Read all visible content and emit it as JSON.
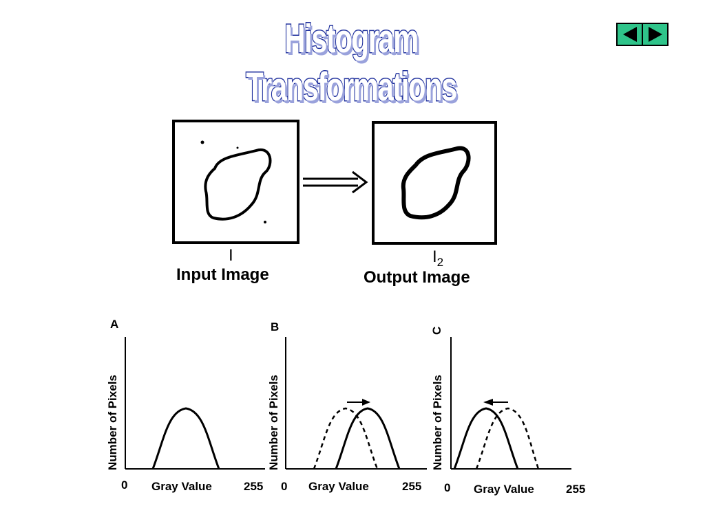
{
  "slide": {
    "title": "Histogram Transformations"
  },
  "nav": {
    "prev_icon": "triangle-left-icon",
    "next_icon": "triangle-right-icon",
    "color": "#2fc48a"
  },
  "images": {
    "input": {
      "symbol": "I",
      "caption": "Input Image"
    },
    "output": {
      "symbol": "I",
      "subscript": "2",
      "caption": "Output Image"
    },
    "arrow_icon": "double-arrow-right-icon"
  },
  "panels": [
    {
      "letter": "A",
      "ylabel": "Number of Pixels",
      "xlabel": "Gray Value",
      "xmin": "0",
      "xmax": "255"
    },
    {
      "letter": "B",
      "ylabel": "Number of Pixels",
      "xlabel": "Gray Value",
      "xmin": "0",
      "xmax": "255"
    },
    {
      "letter": "C",
      "ylabel": "Number of Pixels",
      "xlabel": "Gray Value",
      "xmin": "0",
      "xmax": "255"
    }
  ],
  "colors": {
    "title_stroke": "#1e2f9c",
    "title_shadow": "#9aa2dc",
    "ink": "#000000"
  }
}
